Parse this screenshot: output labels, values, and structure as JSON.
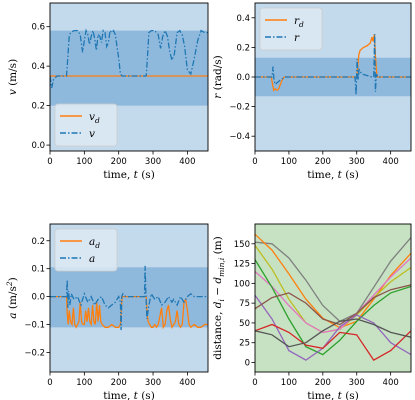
{
  "chart_data": [
    {
      "type": "line",
      "xlabel": "time, t (s)",
      "ylabel": "v (m/s)",
      "xlim": [
        0,
        460
      ],
      "ylim": [
        -0.03,
        0.72
      ],
      "xticks": [
        0,
        100,
        200,
        300,
        400
      ],
      "yticks": [
        0.0,
        0.2,
        0.4,
        0.6
      ],
      "ytick_labels": [
        "0.0",
        "0.2",
        "0.4",
        "0.6"
      ],
      "bands": [
        {
          "range": [
            -0.03,
            0.72
          ],
          "color": "#c3d9ec"
        },
        {
          "range": [
            0.2,
            0.58
          ],
          "color": "#8fb9dc"
        }
      ],
      "legend": {
        "position": "lower-left",
        "entries": [
          {
            "label": "vd",
            "series": 0
          },
          {
            "label": "v",
            "series": 1
          }
        ]
      },
      "series": [
        {
          "name": "vd",
          "color": "#ff7f0e",
          "dash": "",
          "x": [
            0,
            460
          ],
          "y": [
            0.35,
            0.35
          ]
        },
        {
          "name": "v",
          "color": "#1f77b4",
          "dash": "6,2,1.5,2",
          "x": [
            0,
            5,
            10,
            20,
            35,
            48,
            52,
            56,
            60,
            70,
            80,
            88,
            95,
            100,
            105,
            110,
            115,
            120,
            125,
            130,
            135,
            140,
            145,
            150,
            155,
            160,
            165,
            170,
            175,
            180,
            185,
            190,
            195,
            200,
            205,
            210,
            212,
            220,
            240,
            260,
            270,
            275,
            280,
            284,
            288,
            295,
            305,
            315,
            322,
            328,
            335,
            342,
            348,
            355,
            362,
            370,
            378,
            385,
            392,
            400,
            410,
            420,
            430,
            440,
            450,
            460
          ],
          "y": [
            0.35,
            0.29,
            0.33,
            0.35,
            0.35,
            0.35,
            0.45,
            0.55,
            0.57,
            0.58,
            0.58,
            0.56,
            0.47,
            0.53,
            0.58,
            0.56,
            0.51,
            0.55,
            0.58,
            0.54,
            0.48,
            0.56,
            0.55,
            0.52,
            0.58,
            0.57,
            0.5,
            0.52,
            0.58,
            0.57,
            0.58,
            0.56,
            0.5,
            0.44,
            0.36,
            0.35,
            0.35,
            0.35,
            0.35,
            0.35,
            0.35,
            0.35,
            0.35,
            0.45,
            0.57,
            0.58,
            0.58,
            0.56,
            0.49,
            0.55,
            0.58,
            0.55,
            0.48,
            0.43,
            0.46,
            0.57,
            0.58,
            0.56,
            0.5,
            0.38,
            0.36,
            0.44,
            0.53,
            0.58,
            0.57,
            0.57
          ]
        }
      ]
    },
    {
      "type": "line",
      "xlabel": "time, t (s)",
      "ylabel": "r (rad/s)",
      "xlim": [
        0,
        460
      ],
      "ylim": [
        -0.5,
        0.5
      ],
      "xticks": [
        0,
        100,
        200,
        300,
        400
      ],
      "yticks": [
        -0.4,
        -0.2,
        0.0,
        0.2,
        0.4
      ],
      "ytick_labels": [
        "−0.4",
        "−0.2",
        "0.0",
        "0.2",
        "0.4"
      ],
      "bands": [
        {
          "range": [
            -0.5,
            0.5
          ],
          "color": "#c3d9ec"
        },
        {
          "range": [
            -0.13,
            0.13
          ],
          "color": "#8fb9dc"
        }
      ],
      "legend": {
        "position": "upper-left",
        "entries": [
          {
            "label": "rd",
            "series": 0
          },
          {
            "label": "r",
            "series": 1
          }
        ]
      },
      "series": [
        {
          "name": "rd",
          "color": "#ff7f0e",
          "dash": "",
          "x": [
            0,
            48,
            52,
            55,
            60,
            65,
            70,
            75,
            80,
            86,
            90,
            300,
            303,
            306,
            310,
            320,
            330,
            340,
            345,
            348,
            352,
            355,
            358,
            360,
            460
          ],
          "y": [
            0.0,
            0.0,
            -0.05,
            -0.09,
            -0.08,
            -0.09,
            -0.08,
            -0.05,
            -0.02,
            0.0,
            0.0,
            0.0,
            0.07,
            0.15,
            0.18,
            0.2,
            0.21,
            0.23,
            0.27,
            0.24,
            0.29,
            0.15,
            0.05,
            0.0,
            0.0
          ]
        },
        {
          "name": "r",
          "color": "#1f77b4",
          "dash": "6,2,1.5,2",
          "x": [
            0,
            50,
            53,
            56,
            60,
            65,
            75,
            90,
            200,
            210,
            295,
            298,
            301,
            304,
            307,
            315,
            330,
            345,
            350,
            353,
            355,
            358,
            362,
            460
          ],
          "y": [
            0.0,
            0.0,
            0.07,
            -0.02,
            -0.05,
            -0.04,
            -0.02,
            0.0,
            0.0,
            0.0,
            0.0,
            -0.12,
            0.12,
            -0.02,
            0.05,
            0.02,
            0.01,
            0.0,
            0.0,
            0.29,
            -0.1,
            0.02,
            0.0,
            0.0
          ]
        }
      ]
    },
    {
      "type": "line",
      "xlabel": "time, t (s)",
      "ylabel": "a (m/s²)",
      "xlim": [
        0,
        460
      ],
      "ylim": [
        -0.27,
        0.26
      ],
      "xticks": [
        0,
        100,
        200,
        300,
        400
      ],
      "yticks": [
        -0.2,
        -0.1,
        0.0,
        0.1,
        0.2
      ],
      "ytick_labels": [
        "−0.2",
        "−0.1",
        "0.0",
        "0.1",
        "0.2"
      ],
      "bands": [
        {
          "range": [
            -0.27,
            0.26
          ],
          "color": "#c3d9ec"
        },
        {
          "range": [
            -0.11,
            0.105
          ],
          "color": "#8fb9dc"
        }
      ],
      "legend": {
        "position": "upper-left",
        "entries": [
          {
            "label": "ad",
            "series": 0
          },
          {
            "label": "a",
            "series": 1
          }
        ]
      },
      "series": [
        {
          "name": "ad",
          "color": "#ff7f0e",
          "dash": "",
          "x": [
            0,
            48,
            50,
            53,
            56,
            60,
            64,
            68,
            72,
            76,
            80,
            84,
            88,
            92,
            96,
            100,
            104,
            108,
            112,
            116,
            120,
            124,
            128,
            132,
            136,
            140,
            144,
            148,
            152,
            160,
            170,
            180,
            190,
            200,
            205,
            210,
            280,
            282,
            286,
            290,
            295,
            300,
            305,
            310,
            315,
            320,
            325,
            330,
            335,
            340,
            345,
            350,
            355,
            360,
            365,
            370,
            375,
            380,
            385,
            390,
            395,
            400,
            405,
            410,
            420,
            430,
            440,
            450,
            460
          ],
          "y": [
            0.0,
            0.0,
            -0.06,
            -0.1,
            -0.05,
            -0.09,
            -0.1,
            -0.04,
            -0.1,
            -0.11,
            -0.1,
            -0.09,
            -0.02,
            -0.09,
            -0.1,
            -0.1,
            -0.05,
            -0.09,
            -0.04,
            -0.09,
            -0.1,
            -0.03,
            -0.09,
            -0.1,
            -0.02,
            -0.09,
            -0.03,
            -0.09,
            -0.1,
            -0.11,
            -0.11,
            -0.1,
            -0.11,
            -0.11,
            -0.1,
            0.0,
            0.0,
            -0.05,
            -0.09,
            -0.1,
            -0.11,
            -0.11,
            -0.1,
            -0.11,
            -0.1,
            -0.07,
            -0.04,
            -0.11,
            -0.1,
            -0.05,
            -0.03,
            -0.08,
            -0.11,
            -0.1,
            -0.09,
            -0.05,
            -0.1,
            -0.11,
            -0.1,
            -0.02,
            -0.01,
            -0.05,
            -0.1,
            -0.11,
            -0.1,
            -0.11,
            -0.11,
            -0.1,
            -0.1
          ]
        },
        {
          "name": "a",
          "color": "#1f77b4",
          "dash": "6,2,1.5,2",
          "x": [
            0,
            48,
            50,
            52,
            54,
            58,
            62,
            70,
            80,
            90,
            100,
            110,
            120,
            130,
            140,
            150,
            160,
            170,
            180,
            190,
            200,
            205,
            207,
            209,
            212,
            220,
            240,
            260,
            275,
            277,
            279,
            282,
            288,
            295,
            305,
            315,
            325,
            335,
            345,
            355,
            360,
            370,
            380,
            390,
            400,
            410,
            420,
            430,
            440,
            450,
            460
          ],
          "y": [
            0.0,
            0.0,
            0.06,
            -0.04,
            0.02,
            -0.03,
            0.01,
            -0.01,
            0.0,
            -0.03,
            0.01,
            -0.02,
            0.0,
            -0.03,
            -0.01,
            0.0,
            -0.03,
            -0.04,
            -0.03,
            -0.02,
            0.0,
            -0.02,
            -0.12,
            0.0,
            0.01,
            0.0,
            0.0,
            0.0,
            0.0,
            0.11,
            0.02,
            -0.08,
            -0.03,
            0.01,
            -0.01,
            0.0,
            -0.03,
            -0.02,
            0.0,
            -0.02,
            -0.01,
            -0.03,
            0.0,
            -0.02,
            0.0,
            0.01,
            0.0,
            0.0,
            0.0,
            0.0,
            0.0
          ]
        }
      ]
    },
    {
      "type": "line",
      "xlabel": "time, t (s)",
      "ylabel": "distance, di − dmin,i (m)",
      "xlim": [
        0,
        460
      ],
      "ylim": [
        -12,
        175
      ],
      "xticks": [
        0,
        100,
        200,
        300,
        400
      ],
      "yticks": [
        0,
        25,
        50,
        75,
        100,
        125,
        150
      ],
      "ytick_labels": [
        "0",
        "25",
        "50",
        "75",
        "100",
        "125",
        "150"
      ],
      "bands": [
        {
          "range": [
            -12,
            175
          ],
          "color": "#c6e2c2"
        }
      ],
      "series": [
        {
          "name": "",
          "color": "#7f7f7f",
          "dash": "",
          "x": [
            0,
            50,
            100,
            150,
            200,
            250,
            300,
            350,
            400,
            460
          ],
          "y": [
            152,
            150,
            132,
            104,
            72,
            52,
            62,
            95,
            128,
            158
          ]
        },
        {
          "name": "",
          "color": "#ff7f0e",
          "dash": "",
          "x": [
            0,
            50,
            100,
            150,
            200,
            250,
            300,
            350,
            400,
            460
          ],
          "y": [
            162,
            142,
            112,
            80,
            56,
            44,
            52,
            80,
            110,
            138
          ]
        },
        {
          "name": "",
          "color": "#bcbd22",
          "dash": "",
          "x": [
            0,
            50,
            100,
            150,
            200,
            250,
            300,
            350,
            400,
            460
          ],
          "y": [
            148,
            118,
            80,
            50,
            38,
            42,
            60,
            82,
            102,
            120
          ]
        },
        {
          "name": "",
          "color": "#e377c2",
          "dash": "",
          "x": [
            0,
            50,
            100,
            150,
            200,
            250,
            300,
            350,
            400,
            460
          ],
          "y": [
            115,
            96,
            72,
            50,
            38,
            42,
            62,
            85,
            108,
            132
          ]
        },
        {
          "name": "",
          "color": "#2ca02c",
          "dash": "",
          "x": [
            0,
            50,
            100,
            150,
            200,
            250,
            300,
            350,
            400,
            460
          ],
          "y": [
            130,
            95,
            55,
            20,
            10,
            28,
            52,
            72,
            88,
            96
          ]
        },
        {
          "name": "",
          "color": "#9467bd",
          "dash": "",
          "x": [
            0,
            50,
            100,
            150,
            200,
            250,
            300,
            350,
            400,
            460
          ],
          "y": [
            85,
            55,
            15,
            3,
            18,
            45,
            60,
            50,
            25,
            10
          ]
        },
        {
          "name": "",
          "color": "#8c564b",
          "dash": "",
          "x": [
            0,
            50,
            100,
            150,
            200,
            250,
            300,
            350,
            400,
            460
          ],
          "y": [
            68,
            82,
            88,
            75,
            55,
            48,
            62,
            82,
            92,
            98
          ]
        },
        {
          "name": "",
          "color": "#d62728",
          "dash": "",
          "x": [
            0,
            50,
            100,
            150,
            200,
            250,
            300,
            350,
            400,
            460
          ],
          "y": [
            40,
            48,
            38,
            22,
            18,
            38,
            35,
            3,
            15,
            40
          ]
        },
        {
          "name": "",
          "color": "#555555",
          "dash": "",
          "x": [
            0,
            50,
            100,
            150,
            200,
            250,
            300,
            350,
            400,
            460
          ],
          "y": [
            40,
            35,
            20,
            25,
            40,
            52,
            55,
            48,
            38,
            32
          ]
        }
      ]
    }
  ]
}
